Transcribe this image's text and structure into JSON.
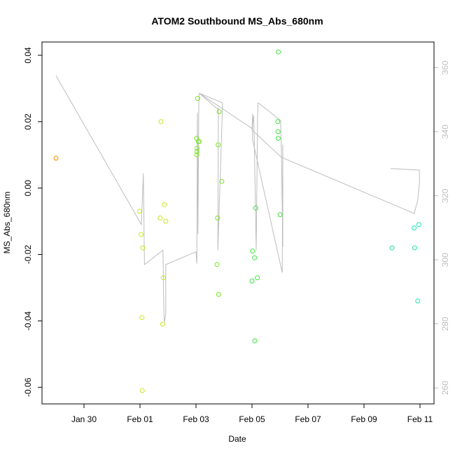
{
  "chart_data": {
    "type": "scatter",
    "title": "ATOM2 Southbound MS_Abs_680nm",
    "xlabel": "Date",
    "ylabel": "MS_Abs_680nm",
    "x_ticks": [
      {
        "t": 1.0,
        "label": "Jan 30"
      },
      {
        "t": 3.0,
        "label": "Feb 01"
      },
      {
        "t": 5.0,
        "label": "Feb 03"
      },
      {
        "t": 7.0,
        "label": "Feb 05"
      },
      {
        "t": 9.0,
        "label": "Feb 07"
      },
      {
        "t": 11.0,
        "label": "Feb 09"
      },
      {
        "t": 13.0,
        "label": "Feb 11"
      }
    ],
    "x_tick_values": [
      "Jan 30",
      "Feb 01",
      "Feb 03",
      "Feb 05",
      "Feb 07",
      "Feb 09",
      "Feb 11"
    ],
    "ylim": [
      -0.065,
      0.044
    ],
    "yticks": [
      -0.06,
      -0.04,
      -0.02,
      0.0,
      0.02,
      0.04
    ],
    "ytick_labels": [
      "-0.06",
      "-0.04",
      "-0.02",
      "0.00",
      "0.02",
      "0.04"
    ],
    "y2lim": [
      255,
      368
    ],
    "y2ticks": [
      260,
      280,
      300,
      320,
      340,
      360
    ],
    "y2tick_labels": [
      "260",
      "280",
      "300",
      "320",
      "340",
      "360"
    ],
    "points": [
      {
        "date": "Jan 29 00:00",
        "t": 0.0,
        "y": 0.009,
        "color": "#ff8c00"
      },
      {
        "date": "Jan 31 23:30",
        "t": 2.98,
        "y": -0.007,
        "color": "#c8e61e"
      },
      {
        "date": "Feb 01 01:00",
        "t": 3.04,
        "y": -0.014,
        "color": "#c8e61e"
      },
      {
        "date": "Feb 01 02:30",
        "t": 3.1,
        "y": -0.018,
        "color": "#c8e61e"
      },
      {
        "date": "Feb 01 01:40",
        "t": 3.07,
        "y": -0.039,
        "color": "#c8e61e"
      },
      {
        "date": "Feb 01 02:00",
        "t": 3.08,
        "y": -0.061,
        "color": "#c8e61e"
      },
      {
        "date": "Feb 01 18:00",
        "t": 3.75,
        "y": 0.02,
        "color": "#c8e61e"
      },
      {
        "date": "Feb 01 17:00",
        "t": 3.72,
        "y": -0.009,
        "color": "#c8e61e"
      },
      {
        "date": "Feb 01 21:00",
        "t": 3.87,
        "y": -0.005,
        "color": "#c8e61e"
      },
      {
        "date": "Feb 01 22:00",
        "t": 3.92,
        "y": -0.01,
        "color": "#c8e61e"
      },
      {
        "date": "Feb 01 20:00",
        "t": 3.83,
        "y": -0.027,
        "color": "#c8e61e"
      },
      {
        "date": "Feb 01 19:30",
        "t": 3.81,
        "y": -0.041,
        "color": "#c8e61e"
      },
      {
        "date": "Feb 03 01:30",
        "t": 5.06,
        "y": 0.027,
        "color": "#78e61e"
      },
      {
        "date": "Feb 03 00:30",
        "t": 5.02,
        "y": 0.015,
        "color": "#78e61e"
      },
      {
        "date": "Feb 03 02:00",
        "t": 5.08,
        "y": 0.014,
        "color": "#78e61e"
      },
      {
        "date": "Feb 03 03:00",
        "t": 5.12,
        "y": 0.014,
        "color": "#78e61e"
      },
      {
        "date": "Feb 03 01:00",
        "t": 5.04,
        "y": 0.012,
        "color": "#78e61e"
      },
      {
        "date": "Feb 03 00:50",
        "t": 5.035,
        "y": 0.011,
        "color": "#78e61e"
      },
      {
        "date": "Feb 03 00:40",
        "t": 5.03,
        "y": 0.01,
        "color": "#78e61e"
      },
      {
        "date": "Feb 03 20:00",
        "t": 5.83,
        "y": 0.023,
        "color": "#78e61e"
      },
      {
        "date": "Feb 03 19:00",
        "t": 5.79,
        "y": 0.013,
        "color": "#78e61e"
      },
      {
        "date": "Feb 03 22:00",
        "t": 5.92,
        "y": 0.002,
        "color": "#78e61e"
      },
      {
        "date": "Feb 03 18:30",
        "t": 5.77,
        "y": -0.009,
        "color": "#78e61e"
      },
      {
        "date": "Feb 03 18:00",
        "t": 5.75,
        "y": -0.023,
        "color": "#78e61e"
      },
      {
        "date": "Feb 03 19:30",
        "t": 5.81,
        "y": -0.032,
        "color": "#78e61e"
      },
      {
        "date": "Feb 05 03:00",
        "t": 7.13,
        "y": -0.006,
        "color": "#3ce63c"
      },
      {
        "date": "Feb 05 00:30",
        "t": 7.02,
        "y": -0.019,
        "color": "#3ce63c"
      },
      {
        "date": "Feb 05 02:00",
        "t": 7.09,
        "y": -0.021,
        "color": "#3ce63c"
      },
      {
        "date": "Feb 05 04:30",
        "t": 7.19,
        "y": -0.027,
        "color": "#3ce63c"
      },
      {
        "date": "Feb 05 00:00",
        "t": 7.0,
        "y": -0.028,
        "color": "#3ce63c"
      },
      {
        "date": "Feb 05 02:30",
        "t": 7.1,
        "y": -0.046,
        "color": "#3ce63c"
      },
      {
        "date": "Feb 05 22:30",
        "t": 7.94,
        "y": 0.041,
        "color": "#3ce63c"
      },
      {
        "date": "Feb 05 22:00",
        "t": 7.92,
        "y": 0.02,
        "color": "#3ce63c"
      },
      {
        "date": "Feb 05 22:10",
        "t": 7.93,
        "y": 0.017,
        "color": "#3ce63c"
      },
      {
        "date": "Feb 05 22:20",
        "t": 7.935,
        "y": 0.015,
        "color": "#3ce63c"
      },
      {
        "date": "Feb 06 00:00",
        "t": 8.0,
        "y": -0.008,
        "color": "#3ce63c"
      },
      {
        "date": "Feb 10 00:00",
        "t": 12.0,
        "y": -0.018,
        "color": "#1ee696"
      },
      {
        "date": "Feb 10 19:00",
        "t": 12.79,
        "y": -0.012,
        "color": "#1ee6b4"
      },
      {
        "date": "Feb 10 23:00",
        "t": 12.96,
        "y": -0.011,
        "color": "#1ee6b4"
      },
      {
        "date": "Feb 10 19:30",
        "t": 12.81,
        "y": -0.018,
        "color": "#1ee6b4"
      },
      {
        "date": "Feb 10 22:00",
        "t": 12.92,
        "y": -0.034,
        "color": "#1ee6b4"
      }
    ],
    "secondary_line": {
      "color": "#bdbdbd",
      "axis": "right",
      "points": [
        [
          0.0,
          357.5
        ],
        [
          3.05,
          311.0
        ],
        [
          3.12,
          327.0
        ],
        [
          3.16,
          298.5
        ],
        [
          3.82,
          303.0
        ],
        [
          3.85,
          285.0
        ],
        [
          3.87,
          280.5
        ],
        [
          3.92,
          283.0
        ],
        [
          3.92,
          298.5
        ],
        [
          5.0,
          302.5
        ],
        [
          5.03,
          298.8
        ],
        [
          5.05,
          346.0
        ],
        [
          5.07,
          308.0
        ],
        [
          5.1,
          348.5
        ],
        [
          5.12,
          352.0
        ],
        [
          5.78,
          347.0
        ],
        [
          5.8,
          347.5
        ],
        [
          5.78,
          303.0
        ],
        [
          5.95,
          349.0
        ],
        [
          5.12,
          352.0
        ],
        [
          7.0,
          341.0
        ],
        [
          7.06,
          345.0
        ],
        [
          7.08,
          338.0
        ],
        [
          7.15,
          303.0
        ],
        [
          7.2,
          345.0
        ],
        [
          7.22,
          349.0
        ],
        [
          8.02,
          343.5
        ],
        [
          8.05,
          334.0
        ],
        [
          8.1,
          304.0
        ],
        [
          8.1,
          336.0
        ],
        [
          8.08,
          296.0
        ],
        [
          7.02,
          337.5
        ],
        [
          7.02,
          345.5
        ],
        [
          7.0,
          340.5
        ],
        [
          8.05,
          332.0
        ],
        [
          12.79,
          314.5
        ],
        [
          12.92,
          318.5
        ],
        [
          12.98,
          324.0
        ],
        [
          12.98,
          328.0
        ],
        [
          11.95,
          328.5
        ]
      ]
    }
  }
}
